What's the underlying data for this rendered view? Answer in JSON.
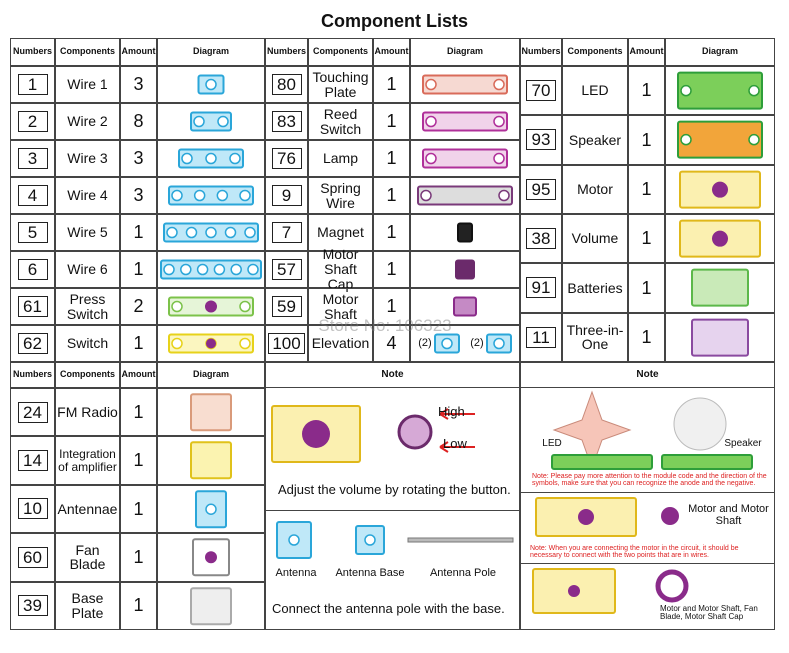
{
  "title": "Component Lists",
  "headers": [
    "Numbers",
    "Components",
    "Amount",
    "Diagram"
  ],
  "tables": [
    {
      "rows": [
        {
          "number": "1",
          "name": "Wire 1",
          "amount": "3"
        },
        {
          "number": "2",
          "name": "Wire 2",
          "amount": "8"
        },
        {
          "number": "3",
          "name": "Wire 3",
          "amount": "3"
        },
        {
          "number": "4",
          "name": "Wire 4",
          "amount": "3"
        },
        {
          "number": "5",
          "name": "Wire 5",
          "amount": "1"
        },
        {
          "number": "6",
          "name": "Wire 6",
          "amount": "1"
        },
        {
          "number": "61",
          "name": "Press Switch",
          "amount": "2"
        },
        {
          "number": "62",
          "name": "Switch",
          "amount": "1"
        }
      ]
    },
    {
      "rows": [
        {
          "number": "80",
          "name": "Touching Plate",
          "amount": "1"
        },
        {
          "number": "83",
          "name": "Reed Switch",
          "amount": "1"
        },
        {
          "number": "76",
          "name": "Lamp",
          "amount": "1"
        },
        {
          "number": "9",
          "name": "Spring Wire",
          "amount": "1"
        },
        {
          "number": "7",
          "name": "Magnet",
          "amount": "1"
        },
        {
          "number": "57",
          "name": "Motor Shaft Cap",
          "amount": "1"
        },
        {
          "number": "59",
          "name": "Motor Shaft",
          "amount": "1"
        },
        {
          "number": "100",
          "name": "Elevation",
          "amount": "4",
          "diagram_labels": [
            "(2)",
            "(2)"
          ]
        }
      ]
    },
    {
      "rows": [
        {
          "number": "70",
          "name": "LED",
          "amount": "1"
        },
        {
          "number": "93",
          "name": "Speaker",
          "amount": "1"
        },
        {
          "number": "95",
          "name": "Motor",
          "amount": "1"
        },
        {
          "number": "38",
          "name": "Volume",
          "amount": "1"
        },
        {
          "number": "91",
          "name": "Batteries",
          "amount": "1"
        },
        {
          "number": "11",
          "name": "Three-in-One",
          "amount": "1"
        }
      ]
    },
    {
      "rows": [
        {
          "number": "24",
          "name": "FM Radio",
          "amount": "1"
        },
        {
          "number": "14",
          "name": "Integration of amplifier",
          "amount": "1"
        },
        {
          "number": "10",
          "name": "Antennae",
          "amount": "1"
        },
        {
          "number": "60",
          "name": "Fan Blade",
          "amount": "1"
        },
        {
          "number": "39",
          "name": "Base Plate",
          "amount": "1"
        }
      ]
    }
  ],
  "note_middle": {
    "heading": "Note",
    "high": "High",
    "low": "Low",
    "volume_text": "Adjust the volume by rotating the button.",
    "antenna": "Antenna",
    "antenna_base": "Antenna Base",
    "antenna_pole": "Antenna Pole",
    "antenna_text": "Connect the antenna pole with the base."
  },
  "note_right": {
    "heading": "Note",
    "led": "LED",
    "speaker": "Speaker",
    "warning1": "Note: Please pay more attention to the module code and the direction of the symbols, make sure that you can recognize the anode and the negative.",
    "motor_label": "Motor and Motor Shaft",
    "warning2": "Note: When you are connecting the motor in the circuit, it should be necessary to connect with the two points that are in wires.",
    "assembly_label": "Motor and Motor Shaft, Fan Blade, Motor Shaft Cap"
  },
  "watermark": "Store No: 106323"
}
